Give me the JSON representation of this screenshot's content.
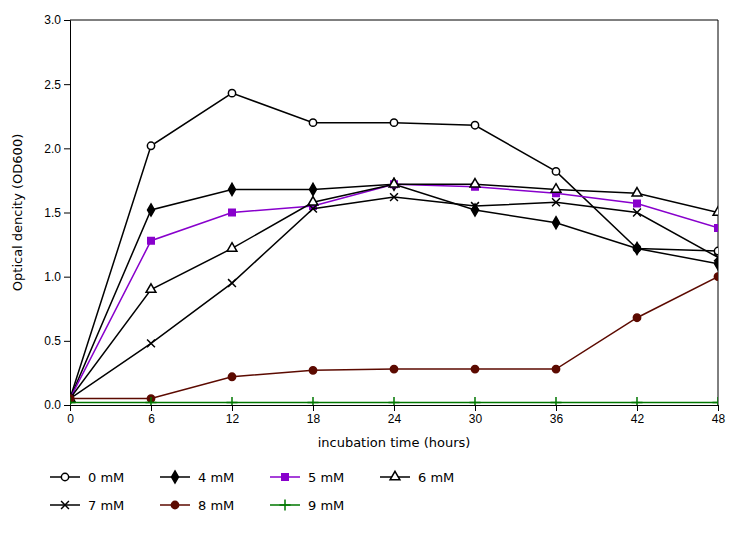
{
  "chart_data": {
    "type": "line",
    "xlabel": "incubation time (hours)",
    "ylabel": "Optical dencity (OD600)",
    "x": [
      0,
      6,
      12,
      18,
      24,
      30,
      36,
      42,
      48
    ],
    "series": [
      {
        "name": "0 mM",
        "color": "#000000",
        "marker": "circle-open",
        "values": [
          0.05,
          2.02,
          2.43,
          2.2,
          2.2,
          2.18,
          1.82,
          1.22,
          1.2
        ]
      },
      {
        "name": "4 mM",
        "color": "#000000",
        "marker": "diamond",
        "values": [
          0.05,
          1.52,
          1.68,
          1.68,
          1.72,
          1.52,
          1.42,
          1.22,
          1.1
        ]
      },
      {
        "name": "5 mM",
        "color": "#8800cc",
        "marker": "square",
        "values": [
          0.05,
          1.28,
          1.5,
          1.55,
          1.72,
          1.7,
          1.65,
          1.57,
          1.38
        ]
      },
      {
        "name": "6 mM",
        "color": "#000000",
        "marker": "triangle-open",
        "values": [
          0.05,
          0.9,
          1.22,
          1.58,
          1.72,
          1.72,
          1.68,
          1.65,
          1.5
        ]
      },
      {
        "name": "7 mM",
        "color": "#000000",
        "marker": "x",
        "values": [
          0.05,
          0.48,
          0.95,
          1.53,
          1.62,
          1.55,
          1.58,
          1.5,
          1.15
        ]
      },
      {
        "name": "8 mM",
        "color": "#5c0a00",
        "marker": "circle",
        "values": [
          0.05,
          0.05,
          0.22,
          0.27,
          0.28,
          0.28,
          0.28,
          0.68,
          1.0
        ]
      },
      {
        "name": "9 mM",
        "color": "#007700",
        "marker": "plus",
        "values": [
          0.02,
          0.02,
          0.02,
          0.02,
          0.02,
          0.02,
          0.02,
          0.02,
          0.02
        ]
      }
    ],
    "xlim": [
      0,
      48
    ],
    "ylim": [
      0,
      3
    ],
    "xticks": [
      0,
      6,
      12,
      18,
      24,
      30,
      36,
      42,
      48
    ],
    "yticks": [
      {
        "value": 0,
        "label": "0.0"
      },
      0.5,
      {
        "value": 1,
        "label": "1.0"
      },
      1.5,
      {
        "value": 2,
        "label": "2.0"
      },
      2.5,
      {
        "value": 3,
        "label": "3.0"
      }
    ],
    "grid": false,
    "legend": "bottom"
  }
}
